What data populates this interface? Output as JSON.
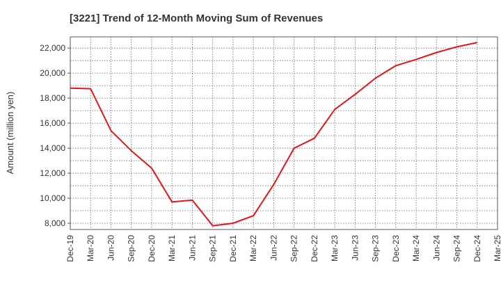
{
  "chart_data": {
    "type": "line",
    "title": "[3221]  Trend of 12-Month Moving Sum of Revenues",
    "xlabel": "",
    "ylabel": "Amount (million yen)",
    "ylim": [
      7500,
      22900
    ],
    "yticks": [
      8000,
      10000,
      12000,
      14000,
      16000,
      18000,
      20000,
      22000
    ],
    "ytick_labels": [
      "8,000",
      "10,000",
      "12,000",
      "14,000",
      "16,000",
      "18,000",
      "20,000",
      "22,000"
    ],
    "categories": [
      "Dec-19",
      "Mar-20",
      "Jun-20",
      "Sep-20",
      "Dec-20",
      "Mar-21",
      "Jun-21",
      "Sep-21",
      "Dec-21",
      "Mar-22",
      "Jun-22",
      "Sep-22",
      "Dec-22",
      "Mar-23",
      "Jun-23",
      "Sep-23",
      "Dec-23",
      "Mar-24",
      "Jun-24",
      "Sep-24",
      "Dec-24",
      "Mar-25"
    ],
    "series": [
      {
        "color": "#e8141b",
        "values": [
          18800,
          18750,
          15400,
          13800,
          12400,
          9700,
          9850,
          7800,
          8000,
          8600,
          11100,
          14000,
          14800,
          17100,
          18300,
          19600,
          20600,
          21100,
          21650,
          22100,
          22450,
          null
        ]
      }
    ],
    "grid": true,
    "grid_style": "dotted"
  }
}
